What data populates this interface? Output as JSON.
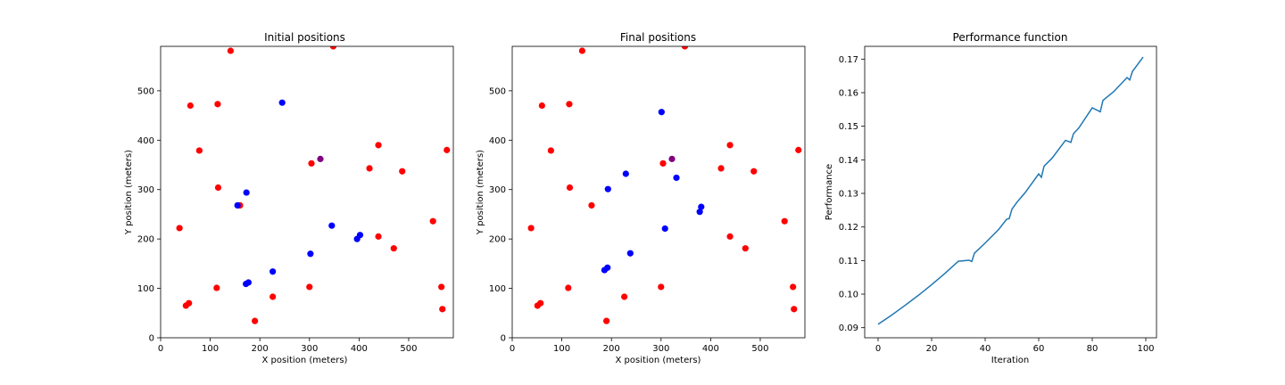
{
  "chart_data": [
    {
      "type": "scatter",
      "title": "Initial positions",
      "xlabel": "X position (meters)",
      "ylabel": "Y position (meters)",
      "xlim": [
        0,
        590
      ],
      "ylim": [
        0,
        590
      ],
      "xticks": [
        0,
        100,
        200,
        300,
        400,
        500
      ],
      "yticks": [
        0,
        100,
        200,
        300,
        400,
        500
      ],
      "grid": false,
      "series": [
        {
          "color": "#ff0000",
          "points": [
            [
              38,
              222
            ],
            [
              60,
              470
            ],
            [
              115,
              473
            ],
            [
              141,
              581
            ],
            [
              348,
              590
            ],
            [
              78,
              379
            ],
            [
              116,
              304
            ],
            [
              160,
              268
            ],
            [
              304,
              353
            ],
            [
              421,
              343
            ],
            [
              439,
              390
            ],
            [
              487,
              337
            ],
            [
              577,
              380
            ],
            [
              549,
              236
            ],
            [
              439,
              205
            ],
            [
              470,
              181
            ],
            [
              113,
              101
            ],
            [
              51,
              65
            ],
            [
              57,
              70
            ],
            [
              226,
              83
            ],
            [
              190,
              34
            ],
            [
              300,
              103
            ],
            [
              566,
              103
            ],
            [
              568,
              58
            ]
          ]
        },
        {
          "color": "#0000ff",
          "points": [
            [
              245,
              476
            ],
            [
              173,
              294
            ],
            [
              155,
              268
            ],
            [
              345,
              227
            ],
            [
              302,
              170
            ],
            [
              396,
              200
            ],
            [
              402,
              208
            ],
            [
              226,
              134
            ],
            [
              172,
              109
            ],
            [
              177,
              112
            ]
          ]
        },
        {
          "color": "#800080",
          "points": [
            [
              322,
              362
            ]
          ]
        }
      ]
    },
    {
      "type": "scatter",
      "title": "Final positions",
      "xlabel": "X position (meters)",
      "ylabel": "Y position (meters)",
      "xlim": [
        0,
        590
      ],
      "ylim": [
        0,
        590
      ],
      "xticks": [
        0,
        100,
        200,
        300,
        400,
        500
      ],
      "yticks": [
        0,
        100,
        200,
        300,
        400,
        500
      ],
      "grid": false,
      "series": [
        {
          "color": "#ff0000",
          "points": [
            [
              38,
              222
            ],
            [
              60,
              470
            ],
            [
              115,
              473
            ],
            [
              141,
              581
            ],
            [
              348,
              590
            ],
            [
              78,
              379
            ],
            [
              116,
              304
            ],
            [
              160,
              268
            ],
            [
              304,
              353
            ],
            [
              421,
              343
            ],
            [
              439,
              390
            ],
            [
              487,
              337
            ],
            [
              577,
              380
            ],
            [
              549,
              236
            ],
            [
              439,
              205
            ],
            [
              470,
              181
            ],
            [
              113,
              101
            ],
            [
              51,
              65
            ],
            [
              57,
              70
            ],
            [
              226,
              83
            ],
            [
              190,
              34
            ],
            [
              300,
              103
            ],
            [
              566,
              103
            ],
            [
              568,
              58
            ]
          ]
        },
        {
          "color": "#0000ff",
          "points": [
            [
              301,
              457
            ],
            [
              229,
              332
            ],
            [
              331,
              324
            ],
            [
              193,
              301
            ],
            [
              381,
              265
            ],
            [
              378,
              255
            ],
            [
              308,
              221
            ],
            [
              238,
              171
            ],
            [
              186,
              137
            ],
            [
              192,
              142
            ]
          ]
        },
        {
          "color": "#800080",
          "points": [
            [
              322,
              362
            ]
          ]
        }
      ]
    },
    {
      "type": "line",
      "title": "Performance function",
      "xlabel": "Iteration",
      "ylabel": "Performance",
      "xlim": [
        -5,
        104
      ],
      "ylim": [
        0.087,
        0.1738
      ],
      "xticks": [
        0,
        20,
        40,
        60,
        80,
        100
      ],
      "yticks": [
        "0.09",
        "0.10",
        "0.11",
        "0.12",
        "0.13",
        "0.14",
        "0.15",
        "0.16",
        "0.17"
      ],
      "grid": false,
      "series": [
        {
          "color": "#1f77b4",
          "x": [
            0,
            5,
            10,
            15,
            20,
            25,
            30,
            34,
            35,
            36,
            40,
            45,
            48,
            49,
            50,
            52,
            55,
            60,
            61,
            62,
            65,
            70,
            72,
            73,
            75,
            80,
            83,
            84,
            88,
            93,
            94,
            95,
            99
          ],
          "y": [
            0.091,
            0.0937,
            0.0966,
            0.0996,
            0.1028,
            0.1062,
            0.1098,
            0.1101,
            0.1097,
            0.1122,
            0.1152,
            0.1192,
            0.1223,
            0.1225,
            0.1253,
            0.1275,
            0.1303,
            0.1358,
            0.1348,
            0.1381,
            0.1405,
            0.1458,
            0.1452,
            0.1478,
            0.1495,
            0.1555,
            0.1543,
            0.1577,
            0.1603,
            0.1645,
            0.1638,
            0.1663,
            0.1706
          ]
        }
      ]
    }
  ]
}
